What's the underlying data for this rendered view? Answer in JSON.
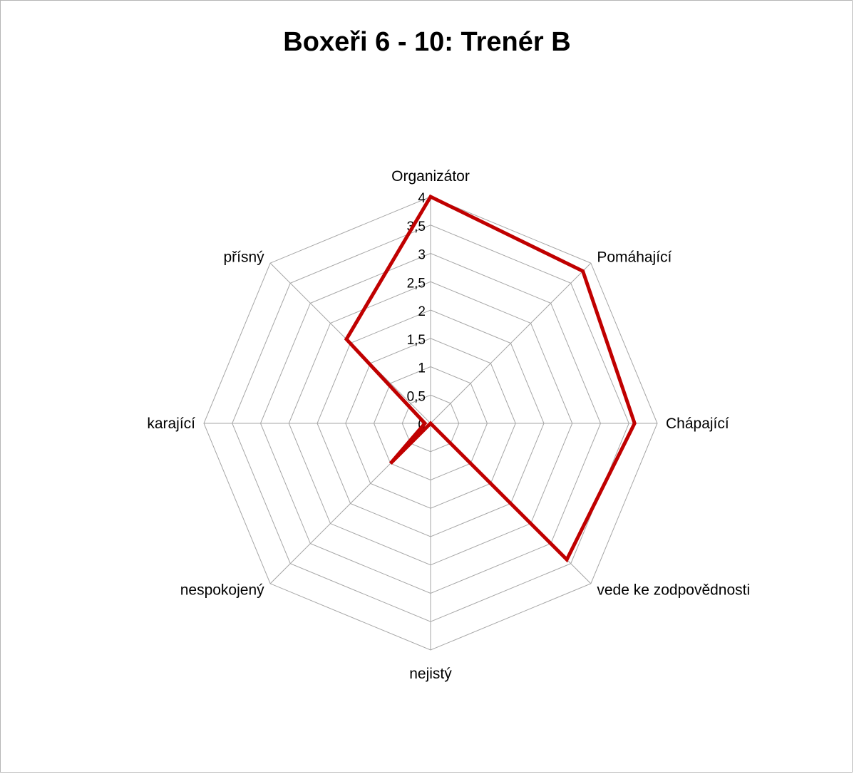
{
  "chart_data": {
    "type": "radar",
    "title": "Boxeři 6 - 10: Trenér B",
    "categories": [
      "Organizátor",
      "Pomáhající",
      "Chápající",
      "vede ke zodpovědnosti",
      "nejistý",
      "nespokojený",
      "karající",
      "přísný"
    ],
    "series": [
      {
        "values": [
          4,
          3.8,
          3.6,
          3.4,
          0,
          1.0,
          0.1,
          2.1
        ],
        "color": "#c00000"
      }
    ],
    "ylim": [
      0,
      4
    ],
    "ticks": [
      "0",
      "0,5",
      "1",
      "1,5",
      "2",
      "2,5",
      "3",
      "3,5",
      "4"
    ],
    "grid": true,
    "legend": "none"
  }
}
